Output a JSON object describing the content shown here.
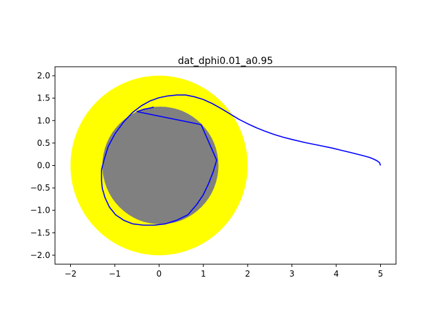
{
  "chart_data": {
    "type": "line",
    "title": "dat_dphi0.01_a0.95",
    "xlabel": "",
    "ylabel": "",
    "xlim": [
      -2.35,
      5.35
    ],
    "ylim": [
      -2.2,
      2.2
    ],
    "xticks": [
      -2,
      -1,
      0,
      1,
      2,
      3,
      4,
      5
    ],
    "yticks": [
      -2.0,
      -1.5,
      -1.0,
      -0.5,
      0.0,
      0.5,
      1.0,
      1.5,
      2.0
    ],
    "xtick_labels": [
      "−2",
      "−1",
      "0",
      "1",
      "2",
      "3",
      "4",
      "5"
    ],
    "ytick_labels": [
      "−2.0",
      "−1.5",
      "−1.0",
      "−0.5",
      "0.0",
      "0.5",
      "1.0",
      "1.5",
      "2.0"
    ],
    "grid": false,
    "shapes": [
      {
        "name": "outer-disk",
        "cx": 0,
        "cy": 0,
        "r": 2.0,
        "color": "#ffff00"
      },
      {
        "name": "inner-disk",
        "cx": 0.03,
        "cy": 0.0,
        "r": 1.31,
        "color": "#808080"
      }
    ],
    "series": [
      {
        "color": "#0000ff",
        "x": [
          5.0,
          4.98,
          4.93,
          4.85,
          4.75,
          4.6,
          4.4,
          4.15,
          3.9,
          3.6,
          3.3,
          3.0,
          2.8,
          2.6,
          2.4,
          2.2,
          2.0,
          1.8,
          1.6,
          1.4,
          1.2,
          1.0,
          0.8,
          0.6,
          0.4,
          0.2,
          0.0,
          -0.2,
          -0.4,
          -0.6,
          -0.8,
          -1.0,
          -1.15,
          -1.25,
          -1.3,
          -1.3,
          -1.28,
          -1.22,
          -1.12,
          -0.98,
          -0.8,
          -0.6,
          -0.35,
          -0.1,
          0.15,
          0.4,
          0.65,
          0.85,
          1.0,
          1.12,
          1.22,
          1.28,
          1.3,
          0.95,
          -0.5,
          -0.35,
          -0.2,
          -0.12
        ],
        "y": [
          0.0,
          0.06,
          0.1,
          0.14,
          0.18,
          0.22,
          0.27,
          0.33,
          0.39,
          0.45,
          0.51,
          0.58,
          0.63,
          0.69,
          0.76,
          0.84,
          0.93,
          1.03,
          1.15,
          1.27,
          1.38,
          1.47,
          1.53,
          1.57,
          1.57,
          1.55,
          1.51,
          1.44,
          1.33,
          1.18,
          0.97,
          0.7,
          0.42,
          0.1,
          -0.1,
          -0.35,
          -0.52,
          -0.72,
          -0.93,
          -1.1,
          -1.22,
          -1.3,
          -1.33,
          -1.33,
          -1.3,
          -1.22,
          -1.1,
          -0.87,
          -0.65,
          -0.4,
          -0.15,
          0.05,
          0.12,
          0.91,
          1.2,
          1.25,
          1.28,
          1.3
        ]
      }
    ]
  }
}
